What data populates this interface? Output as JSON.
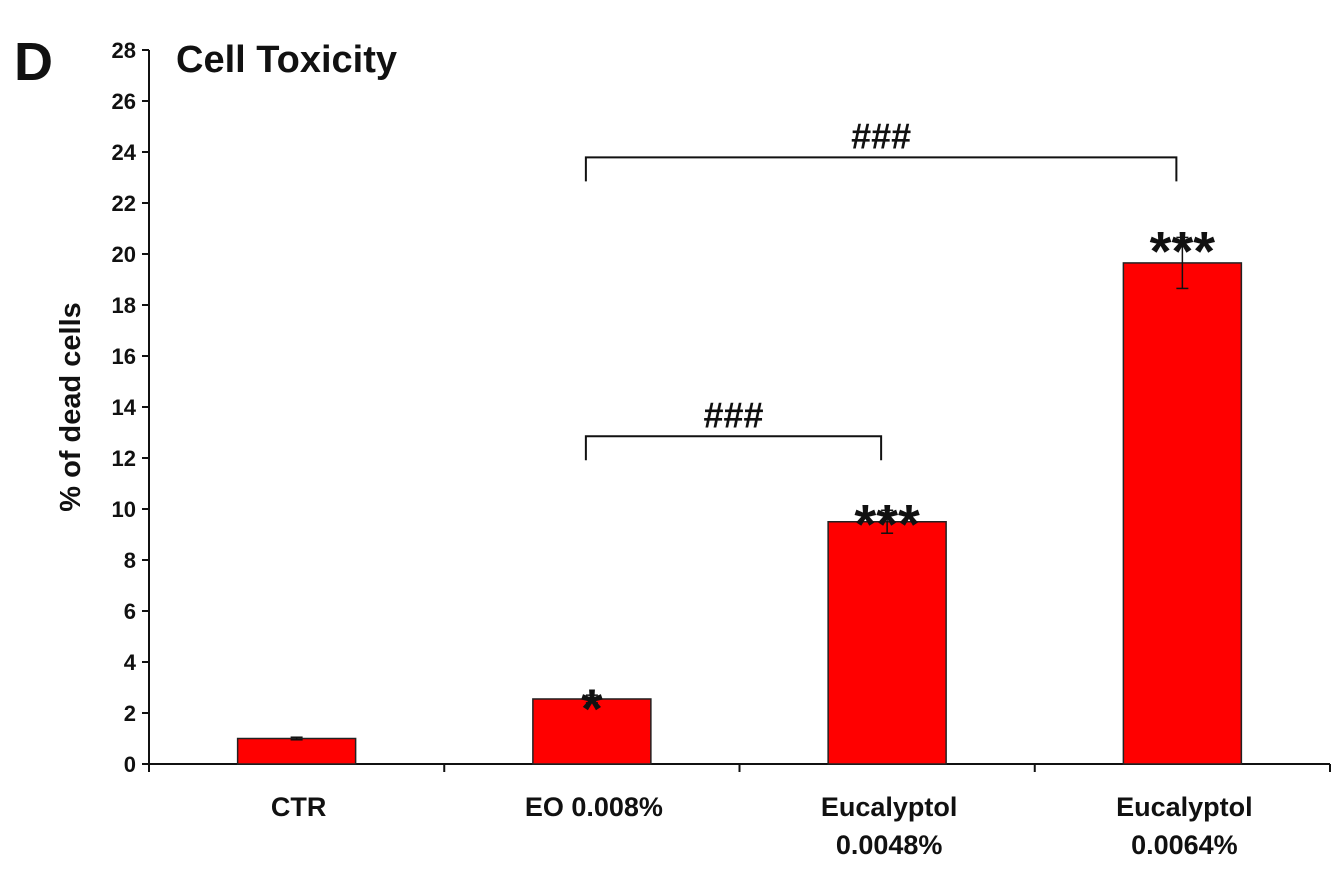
{
  "chart_data": {
    "type": "bar",
    "panel_label": "D",
    "title": "Cell Toxicity",
    "ylabel": "% of dead cells",
    "xlabel": "",
    "ylim": [
      0,
      28
    ],
    "ytick_step": 2,
    "yticks": [
      "0",
      "2",
      "4",
      "6",
      "8",
      "10",
      "12",
      "14",
      "16",
      "18",
      "20",
      "22",
      "24",
      "26",
      "28"
    ],
    "categories": [
      [
        "CTR"
      ],
      [
        "EO 0.008%"
      ],
      [
        "Eucalyptol",
        "0.0048%"
      ],
      [
        "Eucalyptol",
        "0.0064%"
      ]
    ],
    "values": [
      1.0,
      2.55,
      9.5,
      19.65
    ],
    "error": [
      0.05,
      0.15,
      0.45,
      1.0
    ],
    "bar_color": "#ff0000",
    "significance": [
      "",
      "*",
      "***",
      "***"
    ],
    "comparisons": [
      {
        "from": 1,
        "to": 2,
        "label": "###"
      },
      {
        "from": 1,
        "to": 3,
        "label": "###"
      }
    ],
    "grid": false,
    "legend": "none"
  }
}
